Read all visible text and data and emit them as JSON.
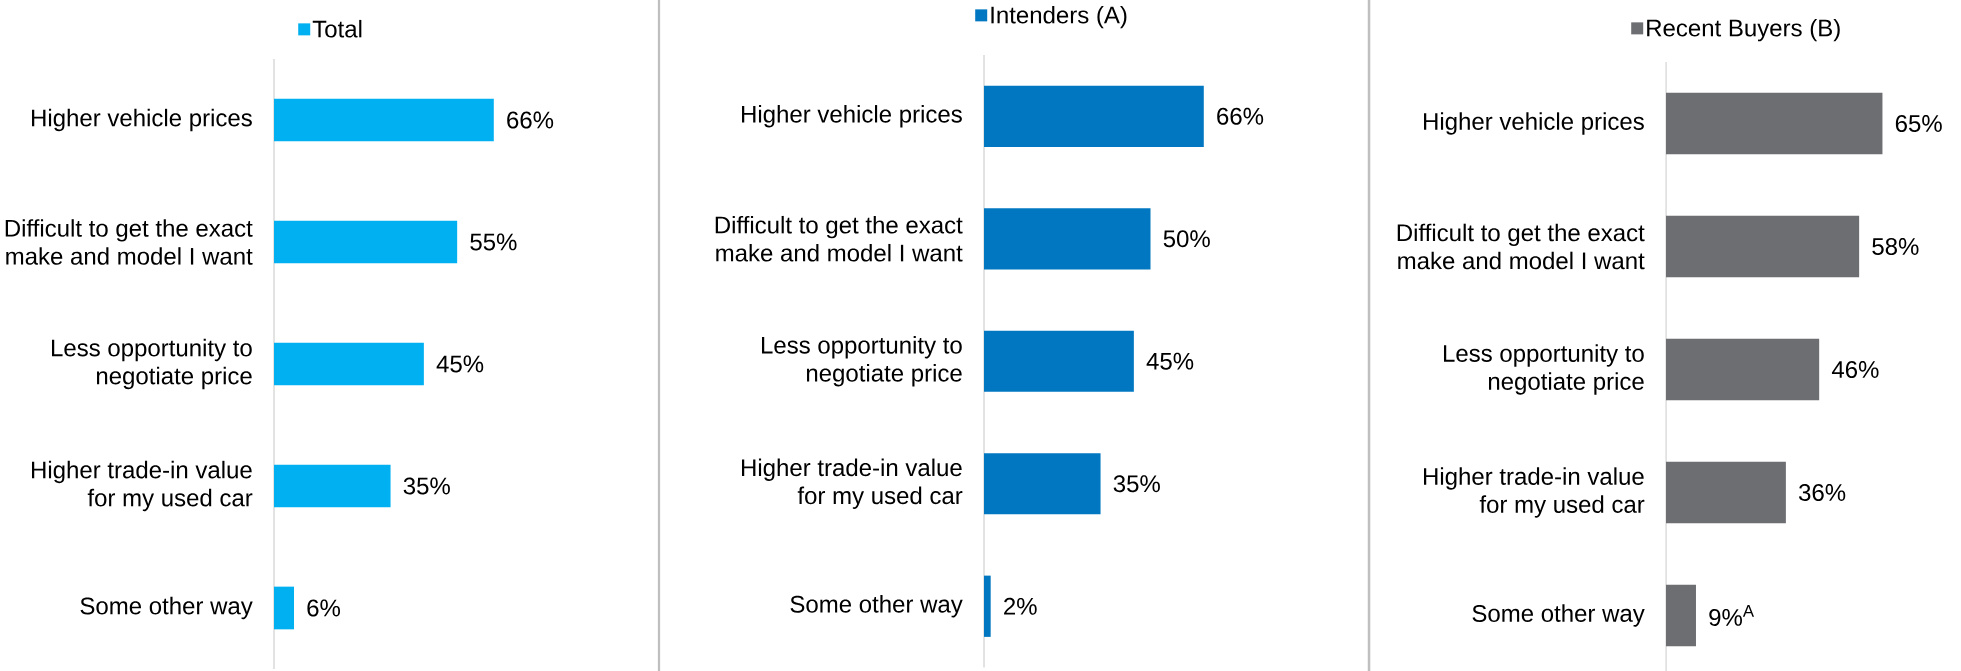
{
  "chart_data": [
    {
      "type": "bar",
      "orientation": "horizontal",
      "categories": [
        "Higher vehicle prices",
        "Difficult to get the exact make and model I want",
        "Less opportunity to negotiate price",
        "Higher trade-in value for my used car",
        "Some other way"
      ],
      "tick_labels": "y",
      "legend": "top",
      "series": [
        {
          "name": "Total",
          "color": "#00b0f0",
          "values": [
            66,
            55,
            45,
            35,
            6
          ],
          "value_labels": [
            "66%",
            "55%",
            "45%",
            "35%",
            "6%"
          ]
        }
      ]
    },
    {
      "type": "bar",
      "orientation": "horizontal",
      "categories": [
        "Higher vehicle prices",
        "Difficult to get the exact make and model I want",
        "Less opportunity to negotiate price",
        "Higher trade-in value for my used car",
        "Some other way"
      ],
      "tick_labels": "y",
      "legend": "top",
      "series": [
        {
          "name": "Intenders (A)",
          "color": "#0077c0",
          "values": [
            66,
            50,
            45,
            35,
            2
          ],
          "value_labels": [
            "66%",
            "50%",
            "45%",
            "35%",
            "2%"
          ]
        }
      ]
    },
    {
      "type": "bar",
      "orientation": "horizontal",
      "categories": [
        "Higher vehicle prices",
        "Difficult to get the exact make and model I want",
        "Less opportunity to negotiate price",
        "Higher trade-in value for my used car",
        "Some other way"
      ],
      "tick_labels": "y",
      "legend": "top",
      "series": [
        {
          "name": "Recent Buyers (B)",
          "color": "#6d6e71",
          "values": [
            65,
            58,
            46,
            36,
            9
          ],
          "value_labels": [
            "65%",
            "58%",
            "46%",
            "36%",
            "9%$^{A}$"
          ]
        }
      ]
    }
  ]
}
